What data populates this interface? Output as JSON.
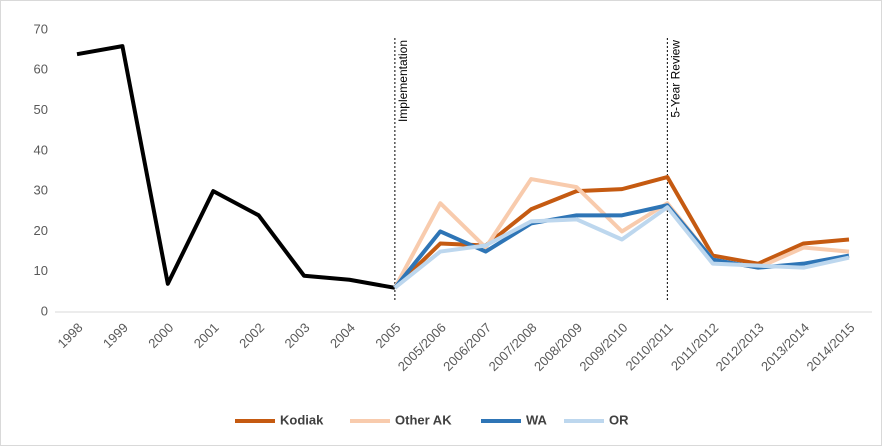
{
  "chart_data": {
    "type": "line",
    "categories": [
      "1998",
      "1999",
      "2000",
      "2001",
      "2002",
      "2003",
      "2004",
      "2005",
      "2005/2006",
      "2006/2007",
      "2007/2008",
      "2008/2009",
      "2009/2010",
      "2010/2011",
      "2011/2012",
      "2012/2013",
      "2013/2014",
      "2014/2015"
    ],
    "series": [
      {
        "color": "#000000",
        "values": [
          64,
          66,
          7,
          30,
          24,
          9,
          8,
          6,
          null,
          null,
          null,
          null,
          null,
          null,
          null,
          null,
          null,
          null
        ]
      },
      {
        "name": "Kodiak",
        "color": "#c55a11",
        "values": [
          null,
          null,
          null,
          null,
          null,
          null,
          null,
          6,
          17,
          16.5,
          25.5,
          30,
          30.5,
          33.5,
          14,
          12,
          17,
          18
        ]
      },
      {
        "name": "Other AK",
        "color": "#f8cbad",
        "values": [
          null,
          null,
          null,
          null,
          null,
          null,
          null,
          6,
          27,
          16,
          33,
          31,
          20,
          27,
          13,
          11,
          16,
          15
        ]
      },
      {
        "name": "WA",
        "color": "#2e75b6",
        "values": [
          null,
          null,
          null,
          null,
          null,
          null,
          null,
          6,
          20,
          15,
          22,
          24,
          24,
          26.5,
          13,
          11,
          12,
          14
        ]
      },
      {
        "name": "OR",
        "color": "#bdd7ee",
        "values": [
          null,
          null,
          null,
          null,
          null,
          null,
          null,
          6,
          15,
          16.5,
          22.5,
          23,
          18,
          26,
          12,
          11.5,
          11,
          13.5
        ]
      }
    ],
    "ylim": [
      0,
      70
    ],
    "yticks": [
      0,
      10,
      20,
      30,
      40,
      50,
      60,
      70
    ],
    "annotations": [
      {
        "text": "Implementation",
        "category": "2005"
      },
      {
        "text": "5-Year Review",
        "category": "2010/2011"
      }
    ]
  }
}
